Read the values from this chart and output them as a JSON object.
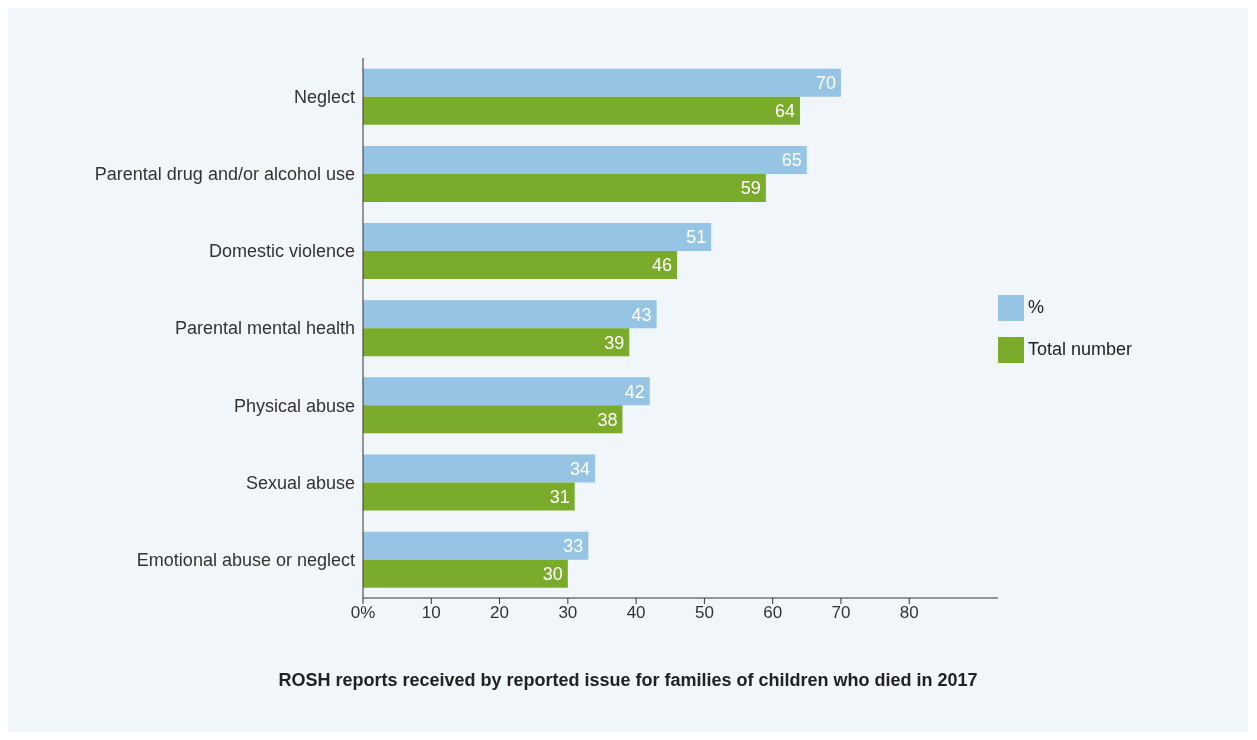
{
  "chart_data": {
    "type": "bar",
    "orientation": "horizontal",
    "title": "ROSH reports received by reported issue for families of children who died in 2017",
    "categories": [
      "Neglect",
      "Parental drug and/or alcohol use",
      "Domestic violence",
      "Parental mental health",
      "Physical abuse",
      "Sexual abuse",
      "Emotional abuse or neglect"
    ],
    "series": [
      {
        "name": "%",
        "color": "#95c4e4",
        "values": [
          70,
          65,
          51,
          43,
          42,
          34,
          33
        ]
      },
      {
        "name": "Total number",
        "color": "#7bab2a",
        "values": [
          64,
          59,
          46,
          39,
          38,
          31,
          30
        ]
      }
    ],
    "xlim": [
      0,
      93
    ],
    "xticks": [
      {
        "value": 0,
        "label": "0%"
      },
      10,
      20,
      30,
      40,
      50,
      60,
      70,
      80
    ],
    "data_labels": true,
    "legend": "right",
    "grid": false
  }
}
